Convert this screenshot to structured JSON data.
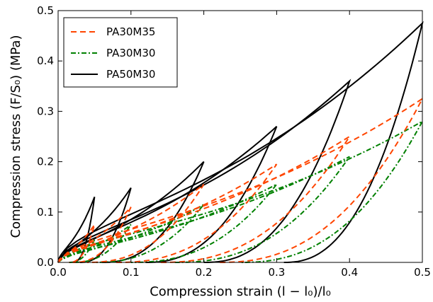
{
  "chart_data": {
    "type": "line",
    "xlabel": "Compression strain (l − l₀)/l₀",
    "ylabel": "Compression stress (F/S₀) (MPa)",
    "xlim": [
      0.0,
      0.5
    ],
    "ylim": [
      0.0,
      0.5
    ],
    "x_ticks": [
      "0.0",
      "0.1",
      "0.2",
      "0.3",
      "0.4",
      "0.5"
    ],
    "y_ticks": [
      "0.0",
      "0.1",
      "0.2",
      "0.3",
      "0.4",
      "0.5"
    ],
    "grid": false,
    "legend_position": "top-left",
    "series": [
      {
        "name": "PA30M35",
        "color": "#ff4500",
        "style": "dashed",
        "peaks": [
          [
            0.05,
            0.075
          ],
          [
            0.1,
            0.11
          ],
          [
            0.2,
            0.155
          ],
          [
            0.3,
            0.195
          ],
          [
            0.4,
            0.25
          ],
          [
            0.5,
            0.325
          ]
        ],
        "end_strain": [
          0.015,
          0.02,
          0.04,
          0.08,
          0.14,
          0.22
        ]
      },
      {
        "name": "PA30M30",
        "color": "#008000",
        "style": "dashdot",
        "peaks": [
          [
            0.05,
            0.045
          ],
          [
            0.1,
            0.075
          ],
          [
            0.2,
            0.115
          ],
          [
            0.3,
            0.155
          ],
          [
            0.4,
            0.21
          ],
          [
            0.5,
            0.28
          ]
        ],
        "end_strain": [
          0.015,
          0.02,
          0.05,
          0.1,
          0.16,
          0.25
        ]
      },
      {
        "name": "PA50M30",
        "color": "#000000",
        "style": "solid",
        "peaks": [
          [
            0.05,
            0.13
          ],
          [
            0.1,
            0.148
          ],
          [
            0.2,
            0.2
          ],
          [
            0.3,
            0.27
          ],
          [
            0.4,
            0.36
          ],
          [
            0.5,
            0.475
          ]
        ],
        "end_strain": [
          0.02,
          0.03,
          0.06,
          0.12,
          0.2,
          0.31
        ]
      }
    ]
  }
}
